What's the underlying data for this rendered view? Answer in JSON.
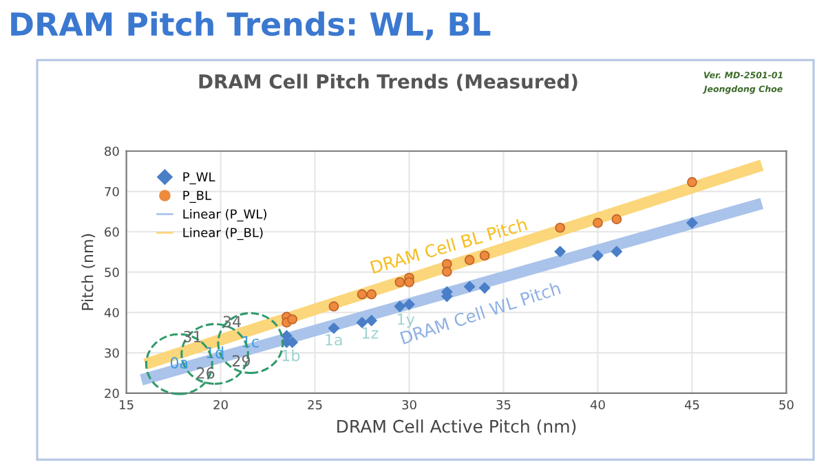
{
  "chart_data": {
    "type": "scatter",
    "title": "DRAM Pitch Trends: WL, BL",
    "subtitle": "DRAM Cell Pitch Trends (Measured)",
    "xlabel": "DRAM Cell Active Pitch (nm)",
    "ylabel": "Pitch (nm)",
    "xlim": [
      15,
      50
    ],
    "xticks": [
      15,
      20,
      25,
      30,
      35,
      40,
      45,
      50
    ],
    "ylim": [
      20,
      80
    ],
    "yticks": [
      20,
      30,
      40,
      50,
      60,
      70,
      80
    ],
    "grid": true,
    "legend": "top left",
    "series": [
      {
        "name": "P_WL",
        "marker": "diamond",
        "color": "#4a7fc8",
        "x": [
          23.5,
          23.5,
          23.8,
          26,
          27.5,
          28,
          29.5,
          30,
          32,
          32,
          33.2,
          34,
          38,
          40,
          41,
          45
        ],
        "values": [
          34.2,
          32.6,
          32.6,
          36.1,
          37.5,
          38,
          41.5,
          42,
          45.1,
          44,
          46.4,
          46.1,
          55.1,
          54.1,
          55.1,
          62.2
        ]
      },
      {
        "name": "P_BL",
        "marker": "circle",
        "color": "#ed8a3c",
        "x": [
          23.5,
          23.5,
          23.8,
          26,
          27.5,
          28,
          29.5,
          30,
          30,
          32,
          32,
          33.2,
          34,
          38,
          40,
          41,
          45
        ],
        "values": [
          38.9,
          37.5,
          38.3,
          41.5,
          44.5,
          44.5,
          47.5,
          48.6,
          47.5,
          52,
          50.1,
          53,
          54.1,
          61,
          62.2,
          63.1,
          72.3
        ]
      },
      {
        "name": "Linear (P_WL)",
        "type": "line",
        "marker": "none",
        "color": "#a9c3ea",
        "x": [
          15.8,
          48.7
        ],
        "values": [
          23.3,
          67
        ]
      },
      {
        "name": "Linear (P_BL)",
        "type": "line",
        "marker": "none",
        "color": "#fbd67a",
        "x": [
          16,
          48.7
        ],
        "values": [
          27.2,
          76.5
        ]
      }
    ],
    "annotations": [
      "DRAM Cell BL Pitch",
      "DRAM Cell WL Pitch",
      "1b",
      "1a",
      "1z",
      "1y",
      "1c",
      "1d",
      "0a",
      "34",
      "31",
      "26",
      "29",
      "Ver. MD-2501-01",
      "Jeongdong Choe"
    ]
  }
}
